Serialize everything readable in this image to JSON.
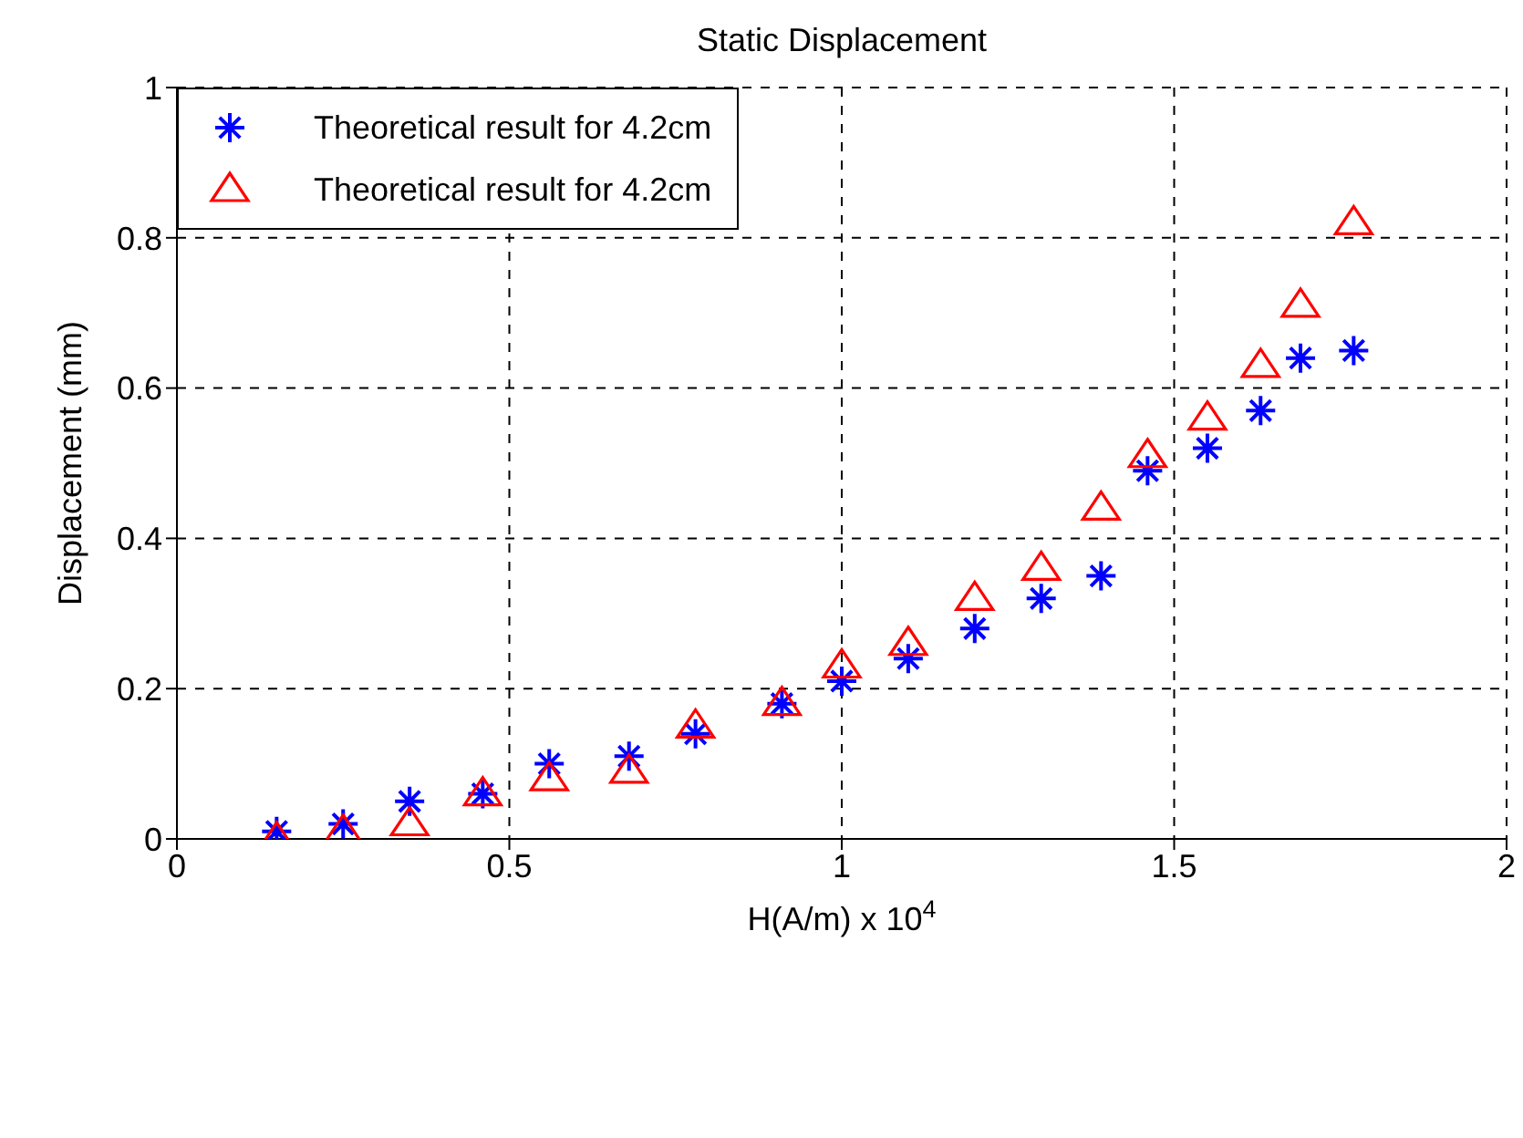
{
  "chart_data": {
    "type": "scatter",
    "title": "Static Displacement",
    "xlabel": "H(A/m) x 10$^{4}$",
    "ylabel": "Displacement (mm)",
    "x": [
      0.15,
      0.25,
      0.35,
      0.46,
      0.56,
      0.68,
      0.78,
      0.91,
      1.0,
      1.1,
      1.2,
      1.3,
      1.39,
      1.46,
      1.55,
      1.63,
      1.69,
      1.77
    ],
    "series": [
      {
        "name": "Theoretical result for 4.2cm",
        "color": "#0000ff",
        "marker": "cross",
        "values": [
          0.01,
          0.02,
          0.05,
          0.06,
          0.1,
          0.11,
          0.14,
          0.18,
          0.21,
          0.24,
          0.28,
          0.32,
          0.35,
          0.49,
          0.52,
          0.57,
          0.64,
          0.65
        ]
      },
      {
        "name": "Theoretical result for 4.2cm",
        "color": "#ff0000",
        "marker": "triangle",
        "values": [
          0,
          0.01,
          0.02,
          0.06,
          0.08,
          0.09,
          0.15,
          0.18,
          0.23,
          0.26,
          0.32,
          0.36,
          0.44,
          0.51,
          0.56,
          0.63,
          0.71,
          0.82
        ]
      }
    ],
    "xlim": [
      0,
      2
    ],
    "xticks": [
      0,
      0.5,
      1,
      1.5,
      2
    ],
    "ylim": [
      0,
      1
    ],
    "yticks": [
      0,
      0.2,
      0.4,
      0.6,
      0.8,
      1
    ],
    "grid": true,
    "legend": "top left"
  }
}
